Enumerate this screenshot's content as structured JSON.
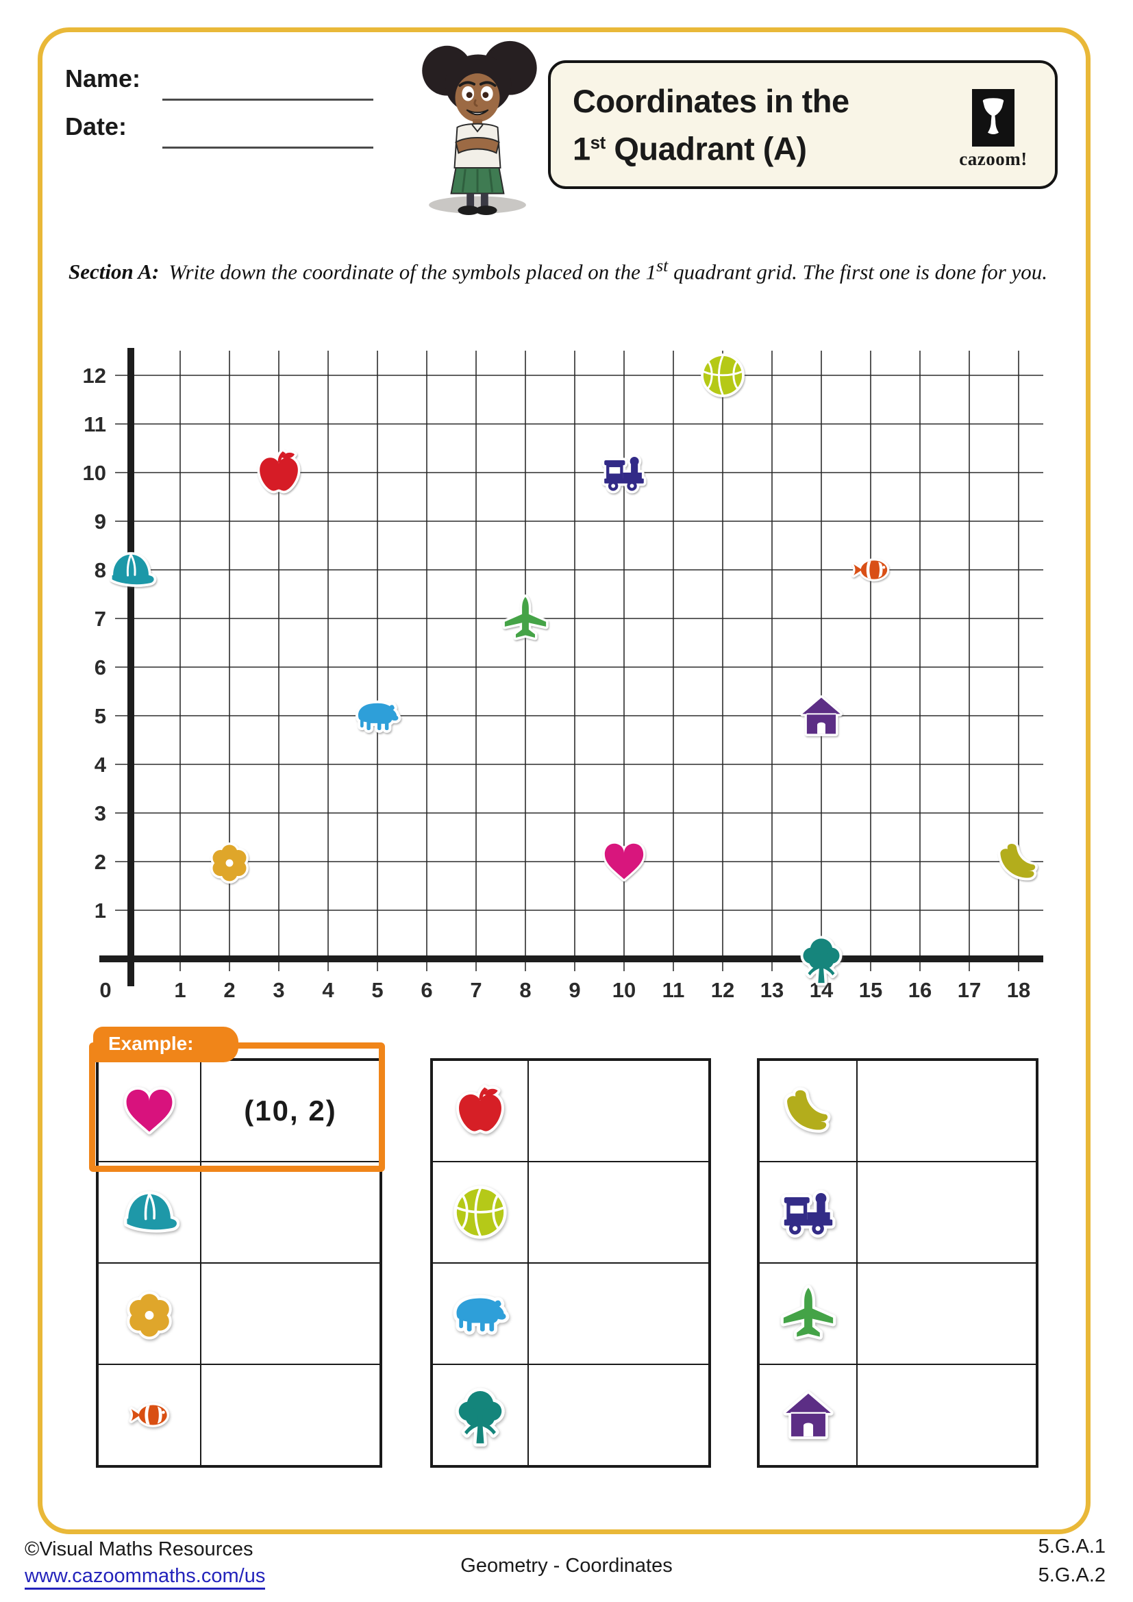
{
  "header": {
    "name_label": "Name:",
    "date_label": "Date:"
  },
  "title_box": {
    "line1": "Coordinates in the",
    "line2_num": "1",
    "line2_sup": "st",
    "line2_rest": " Quadrant (A)",
    "logo_text": "cazoom!"
  },
  "section": {
    "label": "Section A:",
    "body_part1": "Write down the coordinate of the symbols placed on the 1",
    "body_sup": "st",
    "body_part2": " quadrant grid. The first one is done for you."
  },
  "symbols": {
    "heart": {
      "color": "#D8127D"
    },
    "cap": {
      "color": "#1E98A8"
    },
    "flower": {
      "color": "#DFA62B"
    },
    "fish": {
      "color": "#D94F12"
    },
    "apple": {
      "color": "#D61F26"
    },
    "basketball": {
      "color": "#B5C918"
    },
    "bear": {
      "color": "#2E9FD9"
    },
    "tree": {
      "color": "#14857B"
    },
    "banana": {
      "color": "#B3AD1C"
    },
    "train": {
      "color": "#332C87"
    },
    "plane": {
      "color": "#44A347"
    },
    "house": {
      "color": "#5C2E85"
    }
  },
  "chart_data": {
    "type": "scatter",
    "title": "1st quadrant coordinate grid",
    "xlabel": "",
    "ylabel": "",
    "x_range": [
      0,
      18
    ],
    "y_range": [
      0,
      12
    ],
    "grid": true,
    "points": [
      {
        "symbol": "cap",
        "x": 0,
        "y": 8
      },
      {
        "symbol": "apple",
        "x": 3,
        "y": 10
      },
      {
        "symbol": "train",
        "x": 10,
        "y": 10
      },
      {
        "symbol": "basketball",
        "x": 12,
        "y": 12
      },
      {
        "symbol": "fish",
        "x": 15,
        "y": 8
      },
      {
        "symbol": "plane",
        "x": 8,
        "y": 7
      },
      {
        "symbol": "bear",
        "x": 5,
        "y": 5
      },
      {
        "symbol": "house",
        "x": 14,
        "y": 5
      },
      {
        "symbol": "flower",
        "x": 2,
        "y": 2
      },
      {
        "symbol": "heart",
        "x": 10,
        "y": 2
      },
      {
        "symbol": "banana",
        "x": 18,
        "y": 2
      },
      {
        "symbol": "tree",
        "x": 14,
        "y": 0
      }
    ]
  },
  "example": {
    "tab_label": "Example:"
  },
  "answer_tables": [
    {
      "rows": [
        {
          "symbol": "heart",
          "answer": "(10, 2)"
        },
        {
          "symbol": "cap",
          "answer": ""
        },
        {
          "symbol": "flower",
          "answer": ""
        },
        {
          "symbol": "fish",
          "answer": ""
        }
      ]
    },
    {
      "rows": [
        {
          "symbol": "apple",
          "answer": ""
        },
        {
          "symbol": "basketball",
          "answer": ""
        },
        {
          "symbol": "bear",
          "answer": ""
        },
        {
          "symbol": "tree",
          "answer": ""
        }
      ]
    },
    {
      "rows": [
        {
          "symbol": "banana",
          "answer": ""
        },
        {
          "symbol": "train",
          "answer": ""
        },
        {
          "symbol": "plane",
          "answer": ""
        },
        {
          "symbol": "house",
          "answer": ""
        }
      ]
    }
  ],
  "footer": {
    "copyright": "©Visual Maths Resources",
    "url": "www.cazoommaths.com/us",
    "center": "Geometry - Coordinates",
    "standards": [
      "5.G.A.1",
      "5.G.A.2"
    ]
  }
}
